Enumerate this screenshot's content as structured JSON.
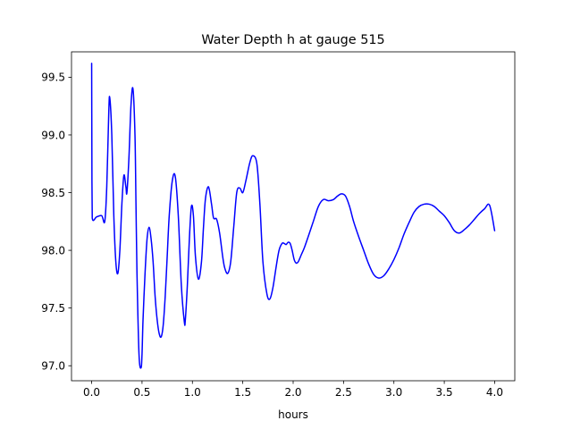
{
  "chart_data": {
    "type": "line",
    "title": "Water Depth h at gauge 515",
    "xlabel": "hours",
    "ylabel": "",
    "xlim": [
      -0.2,
      4.2
    ],
    "ylim": [
      96.87,
      99.72
    ],
    "grid": false,
    "xticks": [
      0.0,
      0.5,
      1.0,
      1.5,
      2.0,
      2.5,
      3.0,
      3.5,
      4.0
    ],
    "xtick_labels": [
      "0.0",
      "0.5",
      "1.0",
      "1.5",
      "2.0",
      "2.5",
      "3.0",
      "3.5",
      "4.0"
    ],
    "yticks": [
      97.0,
      97.5,
      98.0,
      98.5,
      99.0,
      99.5
    ],
    "ytick_labels": [
      "97.0",
      "97.5",
      "98.0",
      "98.5",
      "99.0",
      "99.5"
    ],
    "series": [
      {
        "color": "#0000ff",
        "x": [
          0.0,
          0.003,
          0.006,
          0.05,
          0.1,
          0.13,
          0.15,
          0.17,
          0.18,
          0.2,
          0.22,
          0.24,
          0.26,
          0.28,
          0.3,
          0.32,
          0.34,
          0.35,
          0.37,
          0.39,
          0.41,
          0.43,
          0.44,
          0.45,
          0.47,
          0.49,
          0.5,
          0.51,
          0.53,
          0.55,
          0.57,
          0.59,
          0.61,
          0.63,
          0.65,
          0.67,
          0.69,
          0.71,
          0.73,
          0.75,
          0.77,
          0.8,
          0.83,
          0.86,
          0.89,
          0.92,
          0.93,
          0.95,
          0.97,
          0.99,
          1.01,
          1.03,
          1.06,
          1.09,
          1.11,
          1.13,
          1.16,
          1.19,
          1.21,
          1.24,
          1.27,
          1.3,
          1.32,
          1.35,
          1.38,
          1.41,
          1.44,
          1.47,
          1.5,
          1.53,
          1.57,
          1.6,
          1.64,
          1.67,
          1.7,
          1.74,
          1.77,
          1.8,
          1.83,
          1.86,
          1.89,
          1.91,
          1.93,
          1.95,
          1.97,
          1.99,
          2.01,
          2.03,
          2.05,
          2.08,
          2.11,
          2.15,
          2.2,
          2.25,
          2.3,
          2.35,
          2.4,
          2.44,
          2.48,
          2.52,
          2.56,
          2.6,
          2.65,
          2.7,
          2.75,
          2.8,
          2.85,
          2.9,
          2.95,
          3.0,
          3.05,
          3.1,
          3.15,
          3.2,
          3.25,
          3.3,
          3.35,
          3.4,
          3.45,
          3.5,
          3.55,
          3.6,
          3.65,
          3.7,
          3.75,
          3.8,
          3.85,
          3.9,
          3.95,
          4.0
        ],
        "y": [
          99.62,
          98.6,
          98.28,
          98.29,
          98.3,
          98.25,
          98.55,
          99.2,
          99.32,
          99.0,
          98.3,
          97.9,
          97.8,
          98.0,
          98.4,
          98.65,
          98.55,
          98.5,
          98.8,
          99.25,
          99.4,
          99.0,
          98.4,
          97.8,
          97.1,
          96.98,
          97.1,
          97.4,
          97.8,
          98.1,
          98.2,
          98.1,
          97.9,
          97.6,
          97.4,
          97.28,
          97.25,
          97.35,
          97.6,
          97.95,
          98.3,
          98.6,
          98.64,
          98.3,
          97.7,
          97.38,
          97.4,
          97.7,
          98.1,
          98.38,
          98.3,
          97.95,
          97.75,
          97.9,
          98.2,
          98.45,
          98.55,
          98.4,
          98.28,
          98.27,
          98.15,
          97.95,
          97.85,
          97.8,
          97.9,
          98.2,
          98.5,
          98.54,
          98.5,
          98.6,
          98.76,
          98.82,
          98.75,
          98.4,
          97.9,
          97.62,
          97.58,
          97.68,
          97.85,
          98.0,
          98.06,
          98.06,
          98.05,
          98.07,
          98.06,
          98.0,
          97.92,
          97.89,
          97.9,
          97.96,
          98.02,
          98.12,
          98.25,
          98.38,
          98.44,
          98.43,
          98.44,
          98.47,
          98.49,
          98.47,
          98.38,
          98.25,
          98.12,
          98.0,
          97.88,
          97.79,
          97.76,
          97.78,
          97.84,
          97.92,
          98.02,
          98.14,
          98.24,
          98.33,
          98.38,
          98.4,
          98.4,
          98.38,
          98.34,
          98.3,
          98.24,
          98.17,
          98.15,
          98.18,
          98.22,
          98.27,
          98.32,
          98.36,
          98.39,
          98.17
        ]
      }
    ]
  }
}
